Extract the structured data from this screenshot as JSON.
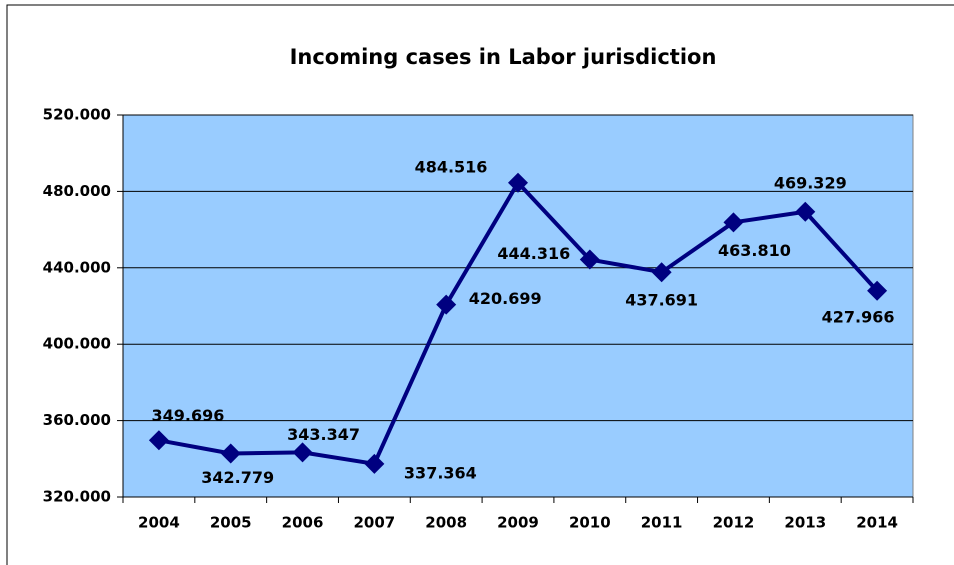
{
  "chart_data": {
    "type": "line",
    "title": "Incoming cases in Labor jurisdiction",
    "categories": [
      "2004",
      "2005",
      "2006",
      "2007",
      "2008",
      "2009",
      "2010",
      "2011",
      "2012",
      "2013",
      "2014"
    ],
    "series": [
      {
        "name": "Incoming cases",
        "color": "#000080",
        "values": [
          349696,
          342779,
          343347,
          337364,
          420699,
          484516,
          444316,
          437691,
          463810,
          469329,
          427966
        ],
        "value_labels": [
          "349.696",
          "342.779",
          "343.347",
          "337.364",
          "420.699",
          "484.516",
          "444.316",
          "437.691",
          "463.810",
          "469.329",
          "427.966"
        ]
      }
    ],
    "ylim": [
      320000,
      520000
    ],
    "yticks": [
      {
        "value": 320000,
        "label": "320.000"
      },
      {
        "value": 360000,
        "label": "360.000"
      },
      {
        "value": 400000,
        "label": "400.000"
      },
      {
        "value": 440000,
        "label": "440.000"
      },
      {
        "value": 480000,
        "label": "480.000"
      },
      {
        "value": 520000,
        "label": "520.000"
      }
    ],
    "grid": true,
    "plot_background": "#99ccff"
  }
}
